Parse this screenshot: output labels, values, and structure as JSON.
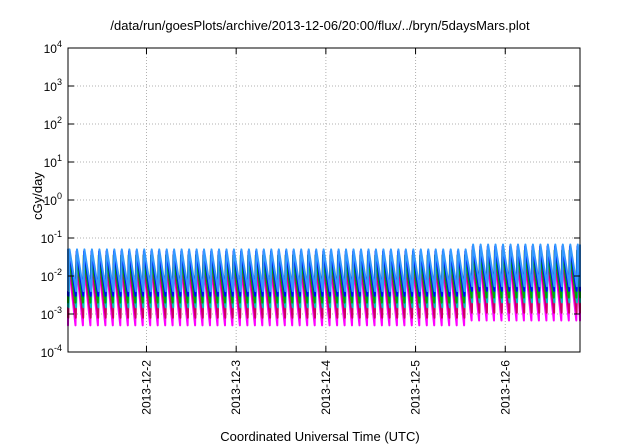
{
  "chart_data": {
    "type": "line",
    "title": "/data/run/goesPlots/archive/2013-12-06/20:00/flux/../bryn/5daysMars.plot",
    "xlabel": "Coordinated Universal Time (UTC)",
    "ylabel": "cGy/day",
    "yscale": "log",
    "ylim": [
      0.0001,
      10000
    ],
    "xlim": [
      "2013-12-01T03:00",
      "2013-12-06T20:00"
    ],
    "y_ticks": [
      {
        "base": "10",
        "exp": "-4"
      },
      {
        "base": "10",
        "exp": "-3"
      },
      {
        "base": "10",
        "exp": "-2"
      },
      {
        "base": "10",
        "exp": "-1"
      },
      {
        "base": "10",
        "exp": "0"
      },
      {
        "base": "10",
        "exp": "1"
      },
      {
        "base": "10",
        "exp": "2"
      },
      {
        "base": "10",
        "exp": "3"
      },
      {
        "base": "10",
        "exp": "4"
      }
    ],
    "x_ticks": [
      "2013-12-2",
      "2013-12-3",
      "2013-12-4",
      "2013-12-5",
      "2013-12-6"
    ],
    "grid": true,
    "period_hours": 2,
    "series": [
      {
        "color": "#ff00ff",
        "peak": 0.02,
        "trough": 0.0005
      },
      {
        "color": "#cc0066",
        "peak": 0.025,
        "trough": 0.0008
      },
      {
        "color": "#00c0c0",
        "peak": 0.03,
        "trough": 0.0015
      },
      {
        "color": "#00aa00",
        "peak": 0.035,
        "trough": 0.002
      },
      {
        "color": "#0000ff",
        "peak": 0.045,
        "trough": 0.003
      },
      {
        "color": "#3399ff",
        "peak": 0.05,
        "trough": 0.004
      }
    ]
  }
}
